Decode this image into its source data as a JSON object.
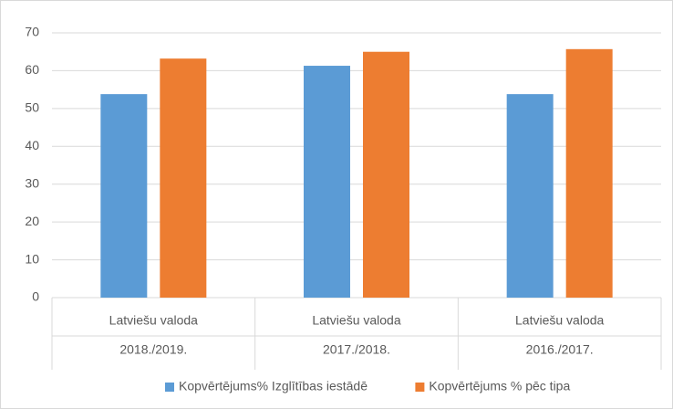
{
  "chart_data": {
    "type": "bar",
    "categories": [
      [
        "Latviešu valoda",
        "2018./2019."
      ],
      [
        "Latviešu valoda",
        "2017./2018."
      ],
      [
        "Latviešu valoda",
        "2016./2017."
      ]
    ],
    "series": [
      {
        "name": "Kopvērtējums% Izglītības iestādē",
        "color": "#5b9bd5",
        "values": [
          53.8,
          61.3,
          53.8
        ]
      },
      {
        "name": "Kopvērtējums % pēc tipa",
        "color": "#ed7d31",
        "values": [
          63.2,
          65.0,
          65.7
        ]
      }
    ],
    "ylim": [
      0,
      70
    ],
    "yticks": [
      0,
      10,
      20,
      30,
      40,
      50,
      60,
      70
    ],
    "grid": true,
    "legend": "bottom"
  }
}
